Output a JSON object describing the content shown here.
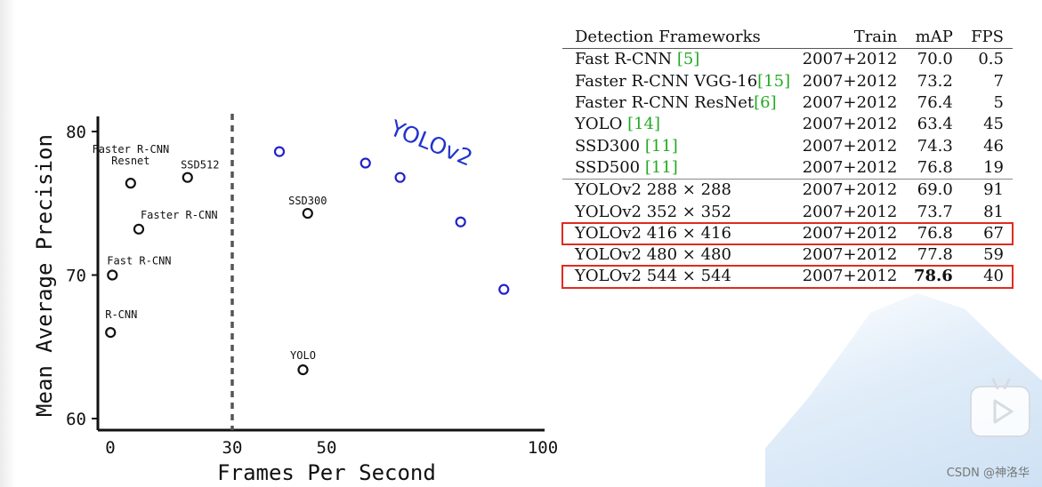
{
  "chart_data": {
    "type": "scatter",
    "xlabel": "Frames Per Second",
    "ylabel": "Mean Average Precision",
    "xlim": [
      0,
      100
    ],
    "ylim": [
      60,
      80
    ],
    "x_ticks": [
      "0",
      "30",
      "50",
      "100"
    ],
    "y_ticks": [
      "60",
      "70",
      "80"
    ],
    "threshold_x": 30,
    "annotation": "YOLOv2",
    "series": [
      {
        "group": "baseline",
        "color": "#111111",
        "points": [
          {
            "label": "R-CNN",
            "x": 0.05,
            "y": 66.0
          },
          {
            "label": "Fast R-CNN",
            "x": 0.5,
            "y": 70.0
          },
          {
            "label": "Faster R-CNN",
            "x": 7,
            "y": 73.2
          },
          {
            "label": "Faster R-CNN Resnet",
            "x": 5,
            "y": 76.4
          },
          {
            "label": "SSD512",
            "x": 19,
            "y": 76.8
          },
          {
            "label": "SSD300",
            "x": 46,
            "y": 74.3
          },
          {
            "label": "YOLO",
            "x": 45,
            "y": 63.4
          }
        ]
      },
      {
        "group": "yolov2",
        "color": "#2222cc",
        "points": [
          {
            "x": 40,
            "y": 78.6
          },
          {
            "x": 59,
            "y": 77.8
          },
          {
            "x": 67,
            "y": 76.8
          },
          {
            "x": 81,
            "y": 73.7
          },
          {
            "x": 91,
            "y": 69.0
          }
        ]
      }
    ]
  },
  "table": {
    "headers": [
      "Detection Frameworks",
      "Train",
      "mAP",
      "FPS"
    ],
    "rows": [
      {
        "name": "Fast R-CNN ",
        "ref": "[5]",
        "name_after": "",
        "train": "2007+2012",
        "map": "70.0",
        "fps": "0.5"
      },
      {
        "name": "Faster R-CNN VGG-16",
        "ref": "[15]",
        "name_after": "",
        "train": "2007+2012",
        "map": "73.2",
        "fps": "7"
      },
      {
        "name": "Faster R-CNN ResNet",
        "ref": "[6]",
        "name_after": "",
        "train": "2007+2012",
        "map": "76.4",
        "fps": "5"
      },
      {
        "name": "YOLO ",
        "ref": "[14]",
        "name_after": "",
        "train": "2007+2012",
        "map": "63.4",
        "fps": "45"
      },
      {
        "name": "SSD300 ",
        "ref": "[11]",
        "name_after": "",
        "train": "2007+2012",
        "map": "74.3",
        "fps": "46"
      },
      {
        "name": "SSD500 ",
        "ref": "[11]",
        "name_after": "",
        "train": "2007+2012",
        "map": "76.8",
        "fps": "19"
      },
      {
        "name": "YOLOv2 288 × 288",
        "ref": "",
        "name_after": "",
        "train": "2007+2012",
        "map": "69.0",
        "fps": "91"
      },
      {
        "name": "YOLOv2 352 × 352",
        "ref": "",
        "name_after": "",
        "train": "2007+2012",
        "map": "73.7",
        "fps": "81"
      },
      {
        "name": "YOLOv2 416 × 416",
        "ref": "",
        "name_after": "",
        "train": "2007+2012",
        "map": "76.8",
        "fps": "67"
      },
      {
        "name": "YOLOv2 480 × 480",
        "ref": "",
        "name_after": "",
        "train": "2007+2012",
        "map": "77.8",
        "fps": "59"
      },
      {
        "name": "YOLOv2 544 × 544",
        "ref": "",
        "name_after": "",
        "train": "2007+2012",
        "map": "78.6",
        "fps": "40"
      }
    ],
    "highlight_color": "#e02b20"
  },
  "watermark": "CSDN @神洛华",
  "play_icon": "play-icon"
}
